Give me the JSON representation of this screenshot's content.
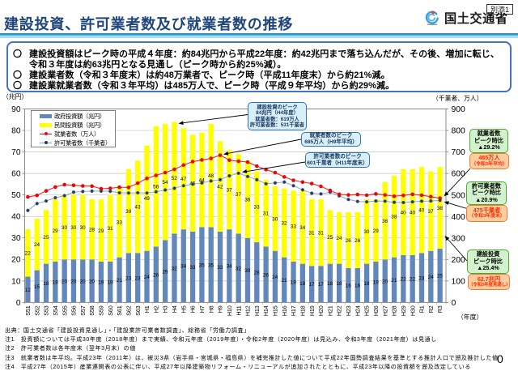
{
  "page": {
    "attachment_tag": "別添1",
    "colors": {
      "title": "#1E4679",
      "title_rule_dark": "#1C93D1",
      "title_rule_light": "#A5DEF3",
      "summary_border": "#4472C4",
      "callout_blue_bg": "#D8EFFA",
      "callout_blue_border": "#2E75B6",
      "callout_green_bg": "#D2F2CD",
      "callout_green_border": "#4EA72E",
      "callout_orange_bg": "#FBCD9F",
      "callout_orange_border": "#ED7D31",
      "callout_orange_text": "#FF2A00"
    },
    "organization": "国土交通省",
    "page_number": "0"
  },
  "header": {
    "title": "建設投資、許可業者数及び就業者数の推移"
  },
  "summary_bullets": [
    {
      "marker": "〇",
      "lines": [
        "建設投資額はピーク時の平成４年度：約84兆円から平成22年度：約42兆円まで落ち込んだが、その後、増加に転じ、",
        "令和３年度は約63兆円となる見通し（ピーク時から約25%減）。"
      ]
    },
    {
      "marker": "〇",
      "lines": [
        "建設業者数（令和３年度末）は約48万業者で、ピーク時（平成11年度末）から約21%減。"
      ]
    },
    {
      "marker": "〇",
      "lines": [
        "建設業就業者数（令和３年平均）は485万人で、ピーク時（平成９年平均）から約29%減。"
      ]
    }
  ],
  "chart_data": {
    "type": "bar",
    "subtype": "stacked-bar-with-lines",
    "title": "",
    "xlabel": "（年度）",
    "left_axis": {
      "title": "（兆円）",
      "min": 0,
      "max": 90,
      "step": 10
    },
    "right_axis": {
      "title": "（千業者、万人）",
      "min": 0,
      "max": 900,
      "step": 100
    },
    "grid": true,
    "legend_position": "top-left",
    "categories": [
      "S51",
      "S52",
      "S53",
      "S54",
      "S55",
      "S56",
      "S57",
      "S58",
      "S59",
      "S60",
      "S61",
      "S62",
      "S63",
      "H1",
      "H2",
      "H3",
      "H4",
      "H5",
      "H6",
      "H7",
      "H8",
      "H9",
      "H10",
      "H11",
      "H12",
      "H13",
      "H14",
      "H15",
      "H16",
      "H17",
      "H18",
      "H19",
      "H20",
      "H21",
      "H22",
      "H23",
      "H24",
      "H25",
      "H26",
      "H27",
      "H28",
      "H29",
      "H30",
      "R1",
      "R2",
      "R3"
    ],
    "series": [
      {
        "name": "政府投資額（兆円）",
        "type": "bar",
        "stack": "invest",
        "axis": "left",
        "color": "#6287BA",
        "values": [
          12,
          15,
          18,
          19,
          20,
          20,
          20,
          20,
          19,
          19,
          21,
          23,
          23,
          24,
          26,
          29,
          32,
          34,
          33,
          35,
          35,
          33,
          34,
          32,
          30,
          28,
          26,
          24,
          21,
          19,
          18,
          17,
          17,
          18,
          18,
          16,
          16,
          18,
          19,
          20,
          21,
          22,
          22,
          23,
          24,
          25
        ]
      },
      {
        "name": "民間投資額（兆円）",
        "type": "bar",
        "stack": "invest",
        "axis": "left",
        "color": "#FFFF00",
        "values": [
          22,
          24,
          25,
          29,
          30,
          30,
          30,
          28,
          29,
          31,
          33,
          39,
          43,
          49,
          56,
          54,
          52,
          47,
          45,
          44,
          48,
          42,
          37,
          37,
          36,
          33,
          31,
          30,
          32,
          33,
          34,
          31,
          31,
          25,
          24,
          26,
          26,
          30,
          29,
          36,
          38,
          40,
          40,
          40,
          37,
          38
        ]
      },
      {
        "name": "就業者数（万人）",
        "type": "line",
        "axis": "right",
        "color": "#FF0000",
        "values": [
          491,
          498,
          519,
          537,
          548,
          545,
          542,
          541,
          529,
          531,
          536,
          535,
          555,
          577,
          591,
          604,
          619,
          639,
          655,
          663,
          670,
          685,
          662,
          657,
          653,
          634,
          618,
          604,
          584,
          568,
          560,
          553,
          540,
          521,
          503,
          500,
          502,
          499,
          505,
          500,
          494,
          498,
          503,
          499,
          492,
          485
        ]
      },
      {
        "name": "許可業者数（千業者）",
        "type": "line",
        "axis": "right",
        "color": "#1F3864",
        "values": [
          428,
          460,
          472,
          487,
          497,
          513,
          516,
          518,
          518,
          517,
          510,
          509,
          510,
          509,
          515,
          523,
          531,
          543,
          550,
          556,
          565,
          571,
          589,
          601,
          586,
          571,
          552,
          556,
          560,
          543,
          524,
          508,
          505,
          513,
          496,
          479,
          470,
          468,
          472,
          471,
          466,
          465,
          468,
          471,
          472,
          475
        ]
      }
    ]
  },
  "callouts": {
    "peak_invest": {
      "lines": [
        "建設投資のピーク",
        "84兆円（H4年度）",
        "就業者数：619万人",
        "許可業者数：531千業者"
      ]
    },
    "peak_workers": {
      "lines": [
        "就業者数のピーク",
        "685万人（H9年平均）"
      ]
    },
    "peak_licensed": {
      "lines": [
        "許可業者数のピーク",
        "601千業者（H11年度末）"
      ]
    },
    "workers_vs_peak": {
      "lines": [
        "就業者数",
        "ピーク時比",
        "▲29.2%"
      ]
    },
    "workers_now": {
      "lines": [
        "485万人",
        "（令和3年平均）"
      ]
    },
    "licensed_vs_peak": {
      "lines": [
        "許可業者数",
        "ピーク時比",
        "▲20.9%"
      ]
    },
    "licensed_now": {
      "lines": [
        "475千業者",
        "（令和3年度末）"
      ]
    },
    "invest_vs_peak": {
      "lines": [
        "建設投資",
        "ピーク時比",
        "▲25.4%"
      ]
    },
    "invest_now": {
      "lines": [
        "62.7兆円",
        "（令和3年度見通し）"
      ]
    }
  },
  "footer": {
    "source": "出典：国土交通省「建設投資見通し」・「建設業許可業者数調査」、総務省「労働力調査」",
    "notes": [
      "注1　投資額については平成30年度（2018年度）まで実績、令和元年度（2019年度）・令和2年度（2020年度）は見込み、令和3年度（2021年度）は見通し",
      "注2　許可業者数は各年度末（翌年3月末）の値",
      "注3　就業者数は年平均。平成23年（2011年）は、被災3県（岩手県・宮城県・福島県）を補完推計した値について平成22年国勢調査結果を基準とする推計人口で遡及推計した値",
      "注4　平成27年（2015年）産業連関表の公表に伴い、平成27年以降建築物リフォーム・リニューアルが追加されたとともに、平成23年以降の投資額を遡及改定している"
    ]
  }
}
